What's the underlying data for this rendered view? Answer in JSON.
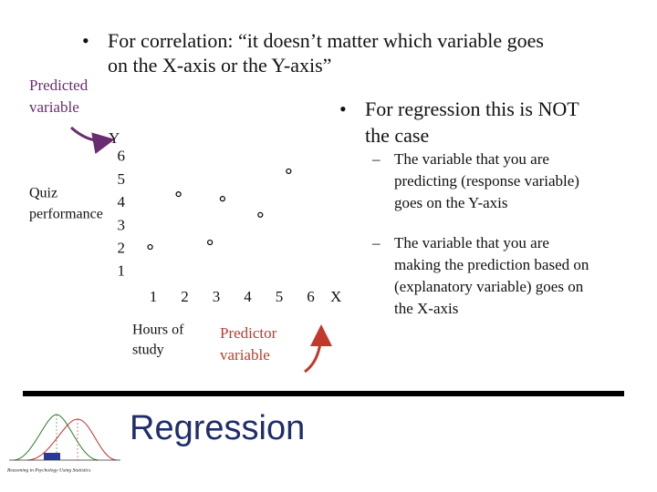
{
  "slide": {
    "title": "Regression",
    "bullets": [
      {
        "marker": "•",
        "lines": [
          "For correlation: “it doesn’t matter which variable goes",
          "on the X-axis or the Y-axis”"
        ]
      },
      {
        "marker": "•",
        "lines": [
          "For regression this is NOT",
          "the case"
        ]
      }
    ],
    "sub_bullets": [
      {
        "marker": "–",
        "lines": [
          "The variable that you are",
          "predicting (response variable)",
          "goes on the Y-axis"
        ]
      },
      {
        "marker": "–",
        "lines": [
          "The variable that you are",
          "making the prediction based on",
          "(explanatory variable) goes on",
          "the X-axis"
        ]
      }
    ],
    "annotations": [
      {
        "lines": [
          "Predicted",
          "variable"
        ],
        "color": "#6a2c70"
      },
      {
        "lines": [
          "Predictor",
          "variable"
        ],
        "color": "#c0392b"
      }
    ],
    "logo_caption": "Reasoning in Psychology Using Statistics"
  },
  "chart_data": {
    "type": "scatter",
    "x_label": "X",
    "y_label": "Y",
    "x_title": [
      "Hours of",
      "study"
    ],
    "y_title": [
      "Quiz",
      "performance"
    ],
    "x": [
      0.9,
      1.8,
      2.8,
      3.2,
      4.4,
      5.3
    ],
    "values": [
      2.1,
      4.4,
      2.3,
      4.2,
      3.5,
      5.4
    ],
    "color": "#000000",
    "xlim": [
      0,
      6.5
    ],
    "ylim": [
      0,
      6.5
    ],
    "xticks": [
      1,
      2,
      3,
      4,
      5,
      6
    ],
    "yticks": [
      1,
      2,
      3,
      4,
      5,
      6
    ],
    "grid": false
  }
}
